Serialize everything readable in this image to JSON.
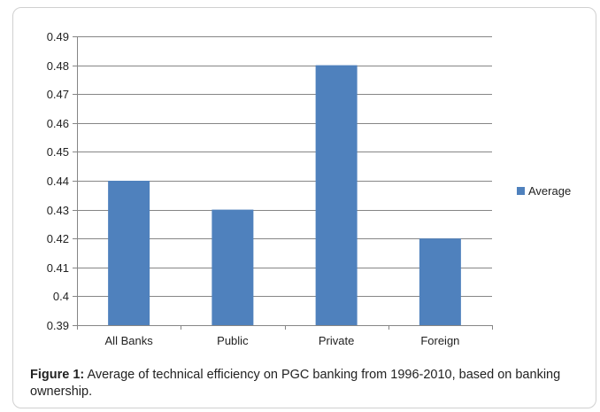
{
  "chart_data": {
    "type": "bar",
    "categories": [
      "All Banks",
      "Public",
      "Private",
      "Foreign"
    ],
    "series": [
      {
        "name": "Average",
        "values": [
          0.44,
          0.43,
          0.48,
          0.42
        ],
        "color": "#4f81bd"
      }
    ],
    "ylim": [
      0.39,
      0.49
    ],
    "yticks": [
      "0.39",
      "0.4",
      "0.41",
      "0.42",
      "0.43",
      "0.44",
      "0.45",
      "0.46",
      "0.47",
      "0.48",
      "0.49"
    ],
    "ytick_values": [
      0.39,
      0.4,
      0.41,
      0.42,
      0.43,
      0.44,
      0.45,
      0.46,
      0.47,
      0.48,
      0.49
    ],
    "grid": true,
    "legend_position": "right"
  },
  "caption": {
    "label": "Figure 1:",
    "text": " Average of technical efficiency on PGC banking from 1996-2010, based on banking ownership."
  }
}
